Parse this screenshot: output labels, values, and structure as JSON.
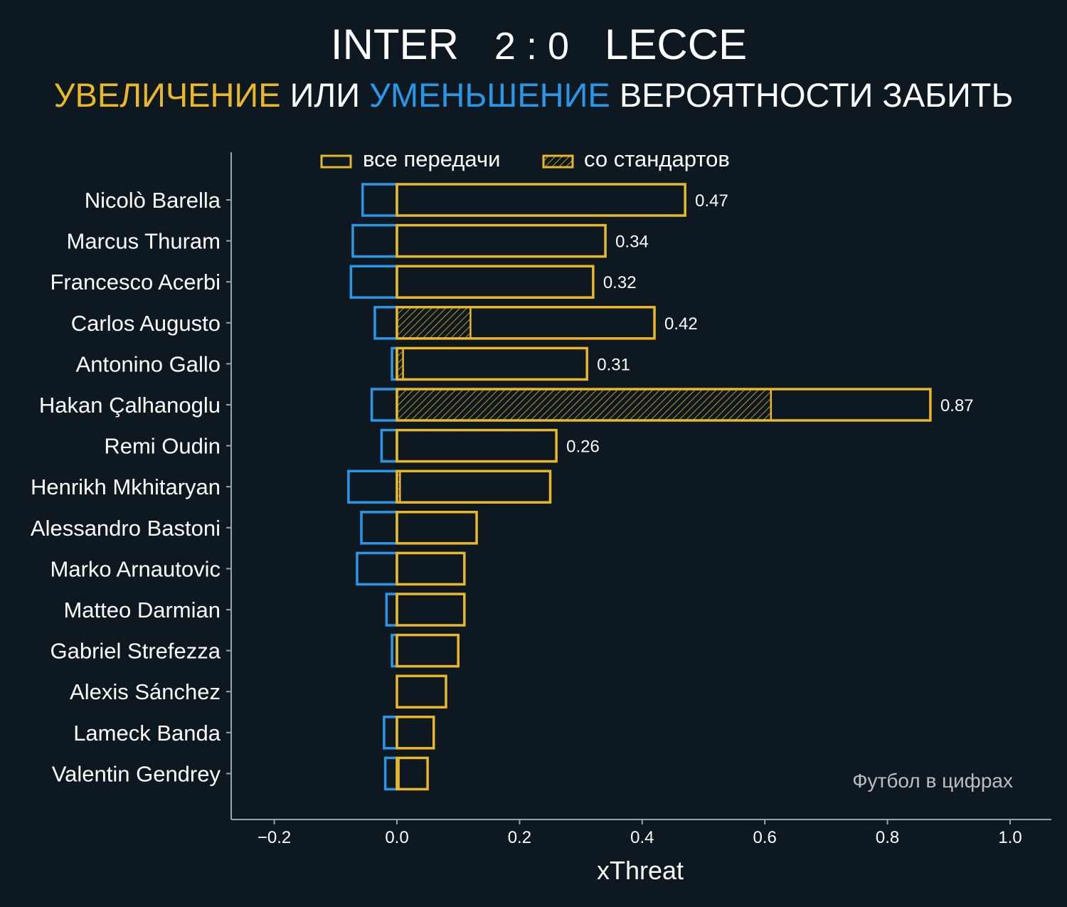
{
  "header": {
    "home_team": "INTER",
    "score": "2 : 0",
    "away_team": "LECCE",
    "subtitle_increase": "УВЕЛИЧЕНИЕ",
    "subtitle_or": "ИЛИ",
    "subtitle_decrease": "УМЕНЬШЕНИЕ",
    "subtitle_rest": "ВЕРОЯТНОСТИ ЗАБИТЬ"
  },
  "watermark": "Футбол в цифрах",
  "colors": {
    "background": "#0e1821",
    "increase": "#e8b828",
    "decrease": "#2997e8",
    "axis": "#9aa3ab",
    "text": "#ffffff"
  },
  "chart_data": {
    "type": "bar",
    "orientation": "horizontal",
    "xlabel": "xThreat",
    "ylabel": "",
    "xlim": [
      -0.27,
      1.07
    ],
    "xticks": [
      -0.2,
      0.0,
      0.2,
      0.4,
      0.6,
      0.8,
      1.0
    ],
    "xtick_labels": [
      "−0.2",
      "0.0",
      "0.2",
      "0.4",
      "0.6",
      "0.8",
      "1.0"
    ],
    "grid": false,
    "legend_position": "top",
    "legend": [
      {
        "label": "все передачи",
        "style": "outline"
      },
      {
        "label": "со стандартов",
        "style": "hatched"
      }
    ],
    "categories": [
      "Nicolò Barella",
      "Marcus Thuram",
      "Francesco Acerbi",
      "Carlos Augusto",
      "Antonino Gallo",
      "Hakan Çalhanoglu",
      "Remi Oudin",
      "Henrikh Mkhitaryan",
      "Alessandro Bastoni",
      "Marko Arnautovic",
      "Matteo Darmian",
      "Gabriel Strefezza",
      "Alexis Sánchez",
      "Lameck Banda",
      "Valentin Gendrey"
    ],
    "series": [
      {
        "name": "все передачи",
        "kind": "increase",
        "values": [
          0.47,
          0.34,
          0.32,
          0.42,
          0.31,
          0.87,
          0.26,
          0.25,
          0.13,
          0.11,
          0.11,
          0.1,
          0.08,
          0.06,
          0.05
        ]
      },
      {
        "name": "со стандартов",
        "kind": "increase-set-pieces",
        "values": [
          0,
          0,
          0,
          0.12,
          0.01,
          0.61,
          0,
          0.005,
          0,
          0,
          0,
          0,
          0,
          0,
          0.003
        ]
      },
      {
        "kind": "decrease",
        "values": [
          -0.056,
          -0.072,
          -0.075,
          -0.036,
          -0.008,
          -0.041,
          -0.025,
          -0.079,
          -0.058,
          -0.065,
          -0.017,
          -0.008,
          0,
          -0.021,
          -0.019
        ]
      }
    ],
    "data_labels": [
      "0.47",
      "0.34",
      "0.32",
      "0.42",
      "0.31",
      "0.87",
      "0.26",
      "",
      "",
      "",
      "",
      "",
      "",
      "",
      ""
    ]
  }
}
